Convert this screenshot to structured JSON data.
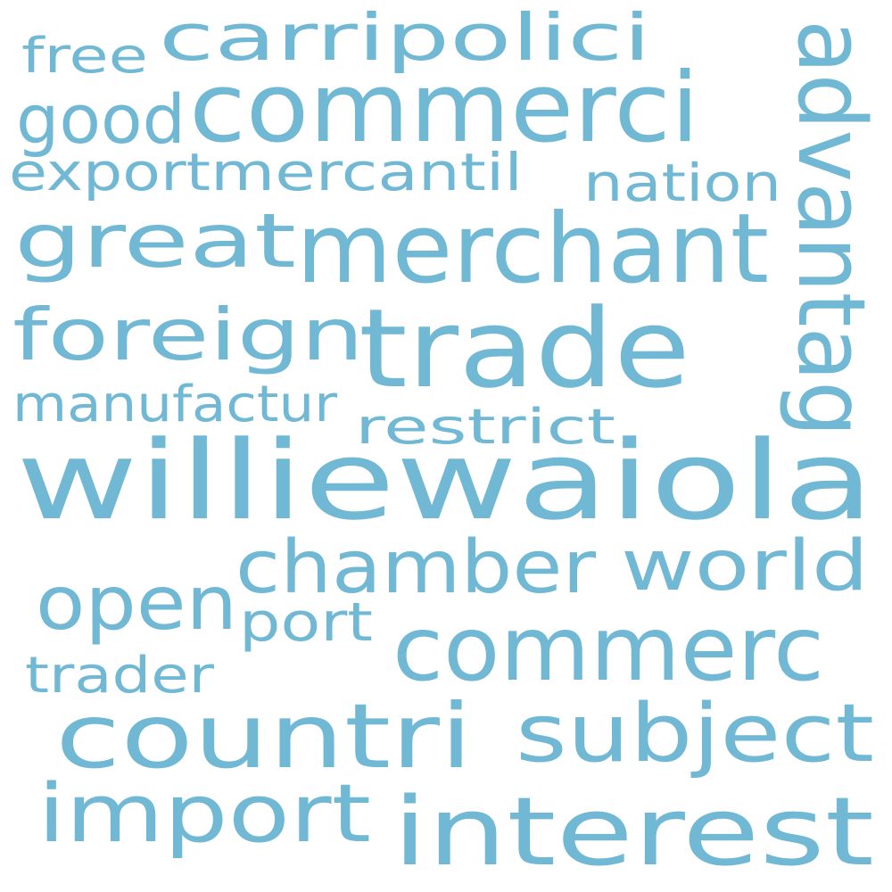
{
  "word_color": "#70b8d4",
  "background_color": "#ffffff",
  "words": [
    "williewaiola",
    "trade",
    "commerci",
    "merchant",
    "commerc",
    "interest",
    "countri",
    "chamber",
    "import",
    "subject",
    "advantag",
    "foreign",
    "great",
    "world",
    "open",
    "carripolici",
    "good",
    "export",
    "mercantil",
    "nation",
    "manufactur",
    "restrict",
    "port",
    "trader",
    "free"
  ]
}
